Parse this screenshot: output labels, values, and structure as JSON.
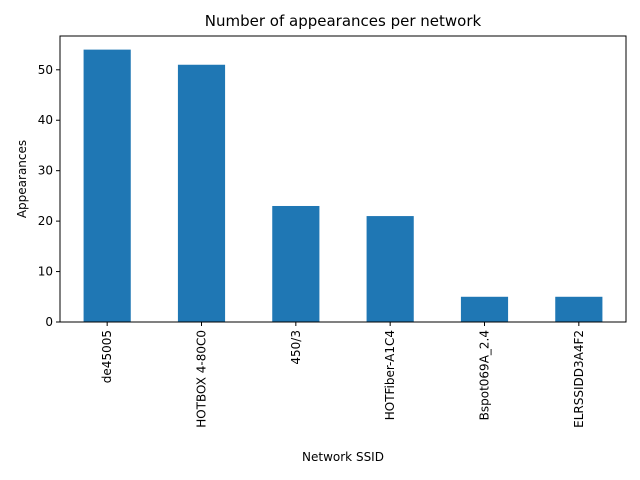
{
  "chart_data": {
    "type": "bar",
    "title": "Number of appearances per network",
    "xlabel": "Network SSID",
    "ylabel": "Appearances",
    "categories": [
      "de45005",
      "HOTBOX 4-80C0",
      "450/3",
      "HOTFiber-A1C4",
      "Bspot069A_2.4",
      "ELRSSIDD3A4F2"
    ],
    "values": [
      54,
      51,
      23,
      21,
      5,
      5
    ],
    "ylim": [
      0,
      56.7
    ],
    "yticks": [
      0,
      10,
      20,
      30,
      40,
      50
    ],
    "grid": false,
    "legend": "none",
    "bar_color": "#1f77b4"
  }
}
